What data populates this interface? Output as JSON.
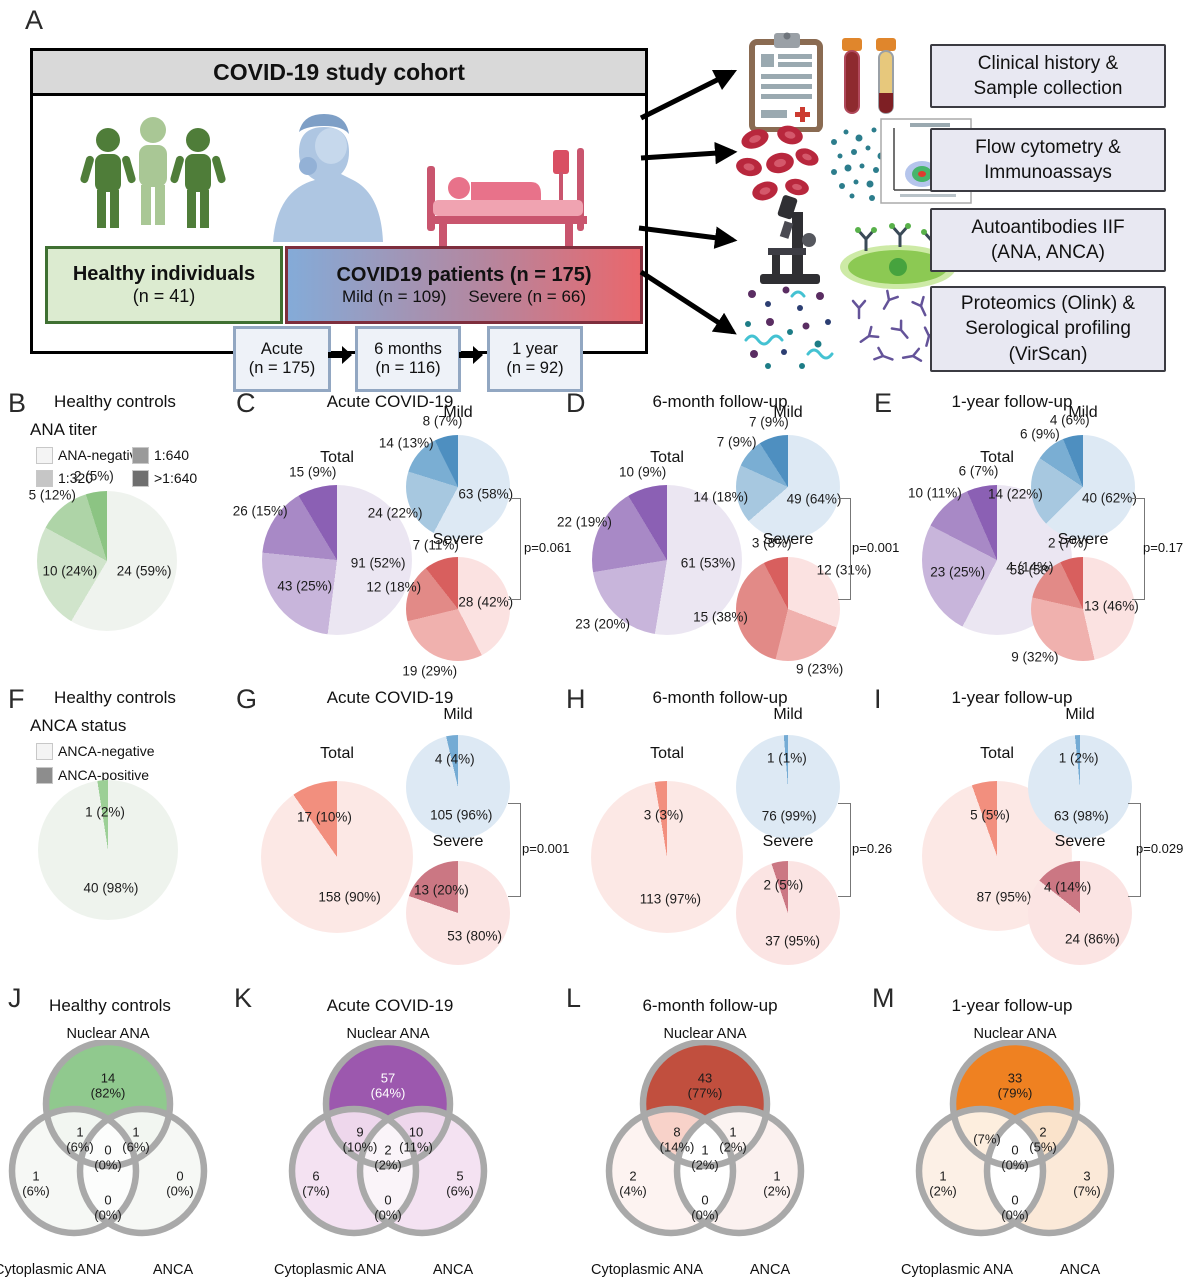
{
  "panel_a": {
    "letter": "A",
    "cohort": {
      "title": "COVID-19 study cohort",
      "healthy": {
        "line1": "Healthy individuals",
        "line2": "(n = 41)"
      },
      "patients": {
        "line1": "COVID19 patients (n = 175)",
        "mild": "Mild (n = 109)",
        "severe": "Severe (n = 66)"
      },
      "timeline": [
        {
          "line1": "Acute",
          "line2": "(n = 175)"
        },
        {
          "line1": "6 months",
          "line2": "(n = 116)"
        },
        {
          "line1": "1 year",
          "line2": "(n = 92)"
        }
      ]
    },
    "methods": [
      {
        "lines": [
          "Clinical history &",
          "Sample collection"
        ]
      },
      {
        "lines": [
          "Flow cytometry &",
          "Immunoassays"
        ]
      },
      {
        "lines": [
          "Autoantibodies IIF",
          "(ANA, ANCA)"
        ]
      },
      {
        "lines": [
          "Proteomics (Olink) &",
          "Serological profiling",
          "(VirScan)"
        ]
      }
    ]
  },
  "chart_data": [
    {
      "id": "B",
      "letter": "B",
      "type": "pie",
      "title": "Healthy controls",
      "legend_title": "ANA titer",
      "categories": [
        "ANA-negative",
        "1:320",
        "1:640",
        ">1:640"
      ],
      "legend_colors": [
        "#f4f4f4",
        "#c6c6c6",
        "#9a9a9a",
        "#6f6f6f"
      ],
      "pies": [
        {
          "group": "",
          "values": [
            24,
            10,
            5,
            2
          ],
          "labels": [
            "24 (59%)",
            "10 (24%)",
            "5 (12%)",
            "2 (5%)"
          ],
          "colors": [
            "#eff3ee",
            "#d0e4cb",
            "#aed4a7",
            "#8cc483"
          ]
        }
      ]
    },
    {
      "id": "C",
      "letter": "C",
      "type": "pie",
      "title": "Acute COVID-19",
      "p_value": "p=0.061",
      "categories": [
        "ANA-negative",
        "1:320",
        "1:640",
        ">1:640"
      ],
      "pies": [
        {
          "group": "Total",
          "values": [
            91,
            43,
            26,
            15
          ],
          "labels": [
            "91 (52%)",
            "43 (25%)",
            "26 (15%)",
            "15 (9%)"
          ],
          "colors": [
            "#ebe6f2",
            "#c8b5db",
            "#a889c6",
            "#8b60b4"
          ]
        },
        {
          "group": "Mild",
          "values": [
            63,
            24,
            14,
            8
          ],
          "labels": [
            "63 (58%)",
            "24 (22%)",
            "14 (13%)",
            "8 (7%)"
          ],
          "colors": [
            "#dde9f4",
            "#a7c8e0",
            "#7aaed3",
            "#4e8fc0"
          ]
        },
        {
          "group": "Severe",
          "values": [
            28,
            19,
            12,
            7
          ],
          "labels": [
            "28 (42%)",
            "19 (29%)",
            "12 (18%)",
            "7 (11%)"
          ],
          "colors": [
            "#fbe2e1",
            "#f0b1ae",
            "#e28a87",
            "#d85f5e"
          ]
        }
      ]
    },
    {
      "id": "D",
      "letter": "D",
      "type": "pie",
      "title": "6-month follow-up",
      "p_value": "p=0.001",
      "categories": [
        "ANA-negative",
        "1:320",
        "1:640",
        ">1:640"
      ],
      "pies": [
        {
          "group": "Total",
          "values": [
            61,
            23,
            22,
            10
          ],
          "labels": [
            "61 (53%)",
            "23 (20%)",
            "22 (19%)",
            "10 (9%)"
          ],
          "colors": [
            "#ebe6f2",
            "#c8b5db",
            "#a889c6",
            "#8b60b4"
          ]
        },
        {
          "group": "Mild",
          "values": [
            49,
            14,
            7,
            7
          ],
          "labels": [
            "49 (64%)",
            "14 (18%)",
            "7 (9%)",
            "7 (9%)"
          ],
          "colors": [
            "#dde9f4",
            "#a7c8e0",
            "#7aaed3",
            "#4e8fc0"
          ]
        },
        {
          "group": "Severe",
          "values": [
            12,
            9,
            15,
            3
          ],
          "labels": [
            "12 (31%)",
            "9 (23%)",
            "15 (38%)",
            "3 (8%)"
          ],
          "colors": [
            "#fbe2e1",
            "#f0b1ae",
            "#e28a87",
            "#d85f5e"
          ]
        }
      ]
    },
    {
      "id": "E",
      "letter": "E",
      "type": "pie",
      "title": "1-year follow-up",
      "p_value": "p=0.17",
      "categories": [
        "ANA-negative",
        "1:320",
        "1:640",
        ">1:640"
      ],
      "pies": [
        {
          "group": "Total",
          "values": [
            53,
            23,
            10,
            6
          ],
          "labels": [
            "53 (58%)",
            "23 (25%)",
            "10 (11%)",
            "6 (7%)"
          ],
          "colors": [
            "#ebe6f2",
            "#c8b5db",
            "#a889c6",
            "#8b60b4"
          ]
        },
        {
          "group": "Mild",
          "values": [
            40,
            14,
            6,
            4
          ],
          "labels": [
            "40 (62%)",
            "14 (22%)",
            "6 (9%)",
            "4 (6%)"
          ],
          "colors": [
            "#dde9f4",
            "#a7c8e0",
            "#7aaed3",
            "#4e8fc0"
          ]
        },
        {
          "group": "Severe",
          "values": [
            13,
            9,
            4,
            2
          ],
          "labels": [
            "13 (46%)",
            "9 (32%)",
            "4 (14%)",
            "2 (7%)"
          ],
          "colors": [
            "#fbe2e1",
            "#f0b1ae",
            "#e28a87",
            "#d85f5e"
          ]
        }
      ]
    },
    {
      "id": "F",
      "letter": "F",
      "type": "pie",
      "title": "Healthy controls",
      "legend_title": "ANCA status",
      "categories": [
        "ANCA-negative",
        "ANCA-positive"
      ],
      "legend_colors": [
        "#f4f4f4",
        "#8d8d8d"
      ],
      "pies": [
        {
          "group": "",
          "values": [
            40,
            1
          ],
          "labels": [
            "40 (98%)",
            "1 (2%)"
          ],
          "colors": [
            "#eef3ed",
            "#9ccf96"
          ]
        }
      ]
    },
    {
      "id": "G",
      "letter": "G",
      "type": "pie",
      "title": "Acute COVID-19",
      "p_value": "p=0.001",
      "categories": [
        "ANCA-negative",
        "ANCA-positive"
      ],
      "pies": [
        {
          "group": "Total",
          "values": [
            158,
            17
          ],
          "labels": [
            "158 (90%)",
            "17 (10%)"
          ],
          "colors": [
            "#fce8e5",
            "#f28f7e"
          ]
        },
        {
          "group": "Mild",
          "values": [
            105,
            4
          ],
          "labels": [
            "105 (96%)",
            "4 (4%)"
          ],
          "colors": [
            "#dde9f4",
            "#74abd4"
          ]
        },
        {
          "group": "Severe",
          "values": [
            53,
            13
          ],
          "labels": [
            "53 (80%)",
            "13 (20%)"
          ],
          "colors": [
            "#fbe4e3",
            "#cb7783"
          ]
        }
      ]
    },
    {
      "id": "H",
      "letter": "H",
      "type": "pie",
      "title": "6-month follow-up",
      "p_value": "p=0.26",
      "categories": [
        "ANCA-negative",
        "ANCA-positive"
      ],
      "pies": [
        {
          "group": "Total",
          "values": [
            113,
            3
          ],
          "labels": [
            "113 (97%)",
            "3 (3%)"
          ],
          "colors": [
            "#fce8e5",
            "#f28f7e"
          ]
        },
        {
          "group": "Mild",
          "values": [
            76,
            1
          ],
          "labels": [
            "76 (99%)",
            "1 (1%)"
          ],
          "colors": [
            "#dde9f4",
            "#74abd4"
          ]
        },
        {
          "group": "Severe",
          "values": [
            37,
            2
          ],
          "labels": [
            "37 (95%)",
            "2 (5%)"
          ],
          "colors": [
            "#fbe4e3",
            "#cb7783"
          ]
        }
      ]
    },
    {
      "id": "I",
      "letter": "I",
      "type": "pie",
      "title": "1-year follow-up",
      "p_value": "p=0.029",
      "categories": [
        "ANCA-negative",
        "ANCA-positive"
      ],
      "pies": [
        {
          "group": "Total",
          "values": [
            87,
            5
          ],
          "labels": [
            "87 (95%)",
            "5 (5%)"
          ],
          "colors": [
            "#fce8e5",
            "#f28f7e"
          ]
        },
        {
          "group": "Mild",
          "values": [
            63,
            1
          ],
          "labels": [
            "63 (98%)",
            "1 (2%)"
          ],
          "colors": [
            "#dde9f4",
            "#74abd4"
          ]
        },
        {
          "group": "Severe",
          "values": [
            24,
            4
          ],
          "labels": [
            "24 (86%)",
            "4 (14%)"
          ],
          "colors": [
            "#fbe4e3",
            "#cb7783"
          ]
        }
      ]
    },
    {
      "id": "J",
      "letter": "J",
      "type": "venn",
      "title": "Healthy controls",
      "sets": {
        "top": "Nuclear ANA",
        "left": "Cytoplasmic ANA",
        "right": "ANCA"
      },
      "fills": {
        "top": "#90c98e",
        "left": "#f6f8f5",
        "right": "#f6f8f5",
        "lens_nc": "#f2f6f1",
        "lens_na": "#f2f6f1",
        "lens_ca": "#fcfdfc",
        "stroke": "#a9a9a9"
      },
      "regions": {
        "nuclear": {
          "n": "14",
          "pct": "(82%)"
        },
        "nc": {
          "n": "1",
          "pct": "(6%)"
        },
        "na": {
          "n": "1",
          "pct": "(6%)"
        },
        "center": {
          "n": "0",
          "pct": "(0%)"
        },
        "cyto": {
          "n": "1",
          "pct": "(6%)"
        },
        "ca": {
          "n": "0",
          "pct": "(0%)"
        },
        "anca": {
          "n": "0",
          "pct": "(0%)"
        }
      }
    },
    {
      "id": "K",
      "letter": "K",
      "type": "venn",
      "title": "Acute COVID-19",
      "sets": {
        "top": "Nuclear ANA",
        "left": "Cytoplasmic ANA",
        "right": "ANCA"
      },
      "fills": {
        "top": "#9c58ae",
        "left": "#f4e2f2",
        "right": "#f4e2f2",
        "lens_nc": "#eed7ec",
        "lens_na": "#eed7ec",
        "lens_ca": "#faf4f9",
        "stroke": "#a9a9a9"
      },
      "regions": {
        "nuclear": {
          "n": "57",
          "pct": "(64%)"
        },
        "nc": {
          "n": "9",
          "pct": "(10%)"
        },
        "na": {
          "n": "10",
          "pct": "(11%)"
        },
        "center": {
          "n": "2",
          "pct": "(2%)"
        },
        "cyto": {
          "n": "6",
          "pct": "(7%)"
        },
        "ca": {
          "n": "0",
          "pct": "(0%)"
        },
        "anca": {
          "n": "5",
          "pct": "(6%)"
        }
      }
    },
    {
      "id": "L",
      "letter": "L",
      "type": "venn",
      "title": "6-month follow-up",
      "sets": {
        "top": "Nuclear ANA",
        "left": "Cytoplasmic ANA",
        "right": "ANCA"
      },
      "fills": {
        "top": "#c14f3e",
        "left": "#fdf3f1",
        "right": "#fbf1ef",
        "lens_nc": "#f8d2c9",
        "lens_na": "#fbf3f1",
        "lens_ca": "#ffffff",
        "stroke": "#a9a9a9"
      },
      "regions": {
        "nuclear": {
          "n": "43",
          "pct": "(77%)"
        },
        "nc": {
          "n": "8",
          "pct": "(14%)"
        },
        "na": {
          "n": "1",
          "pct": "(2%)"
        },
        "center": {
          "n": "1",
          "pct": "(2%)"
        },
        "cyto": {
          "n": "2",
          "pct": "(4%)"
        },
        "ca": {
          "n": "0",
          "pct": "(0%)"
        },
        "anca": {
          "n": "1",
          "pct": "(2%)"
        }
      }
    },
    {
      "id": "M",
      "letter": "M",
      "type": "venn",
      "title": "1-year follow-up",
      "sets": {
        "top": "Nuclear ANA",
        "left": "Cytoplasmic ANA",
        "right": "ANCA"
      },
      "fills": {
        "top": "#ef8121",
        "left": "#fcf0e6",
        "right": "#fbe9d8",
        "lens_nc": "#fdeede",
        "lens_na": "#fae3cb",
        "lens_ca": "#ffffff",
        "stroke": "#a9a9a9"
      },
      "regions": {
        "nuclear": {
          "n": "33",
          "pct": "(79%)"
        },
        "nc": {
          "n": "3",
          "pct": "(7%)"
        },
        "na": {
          "n": "2",
          "pct": "(5%)"
        },
        "center": {
          "n": "0",
          "pct": "(0%)"
        },
        "cyto": {
          "n": "1",
          "pct": "(2%)"
        },
        "ca": {
          "n": "0",
          "pct": "(0%)"
        },
        "anca": {
          "n": "3",
          "pct": "(7%)"
        }
      }
    }
  ]
}
